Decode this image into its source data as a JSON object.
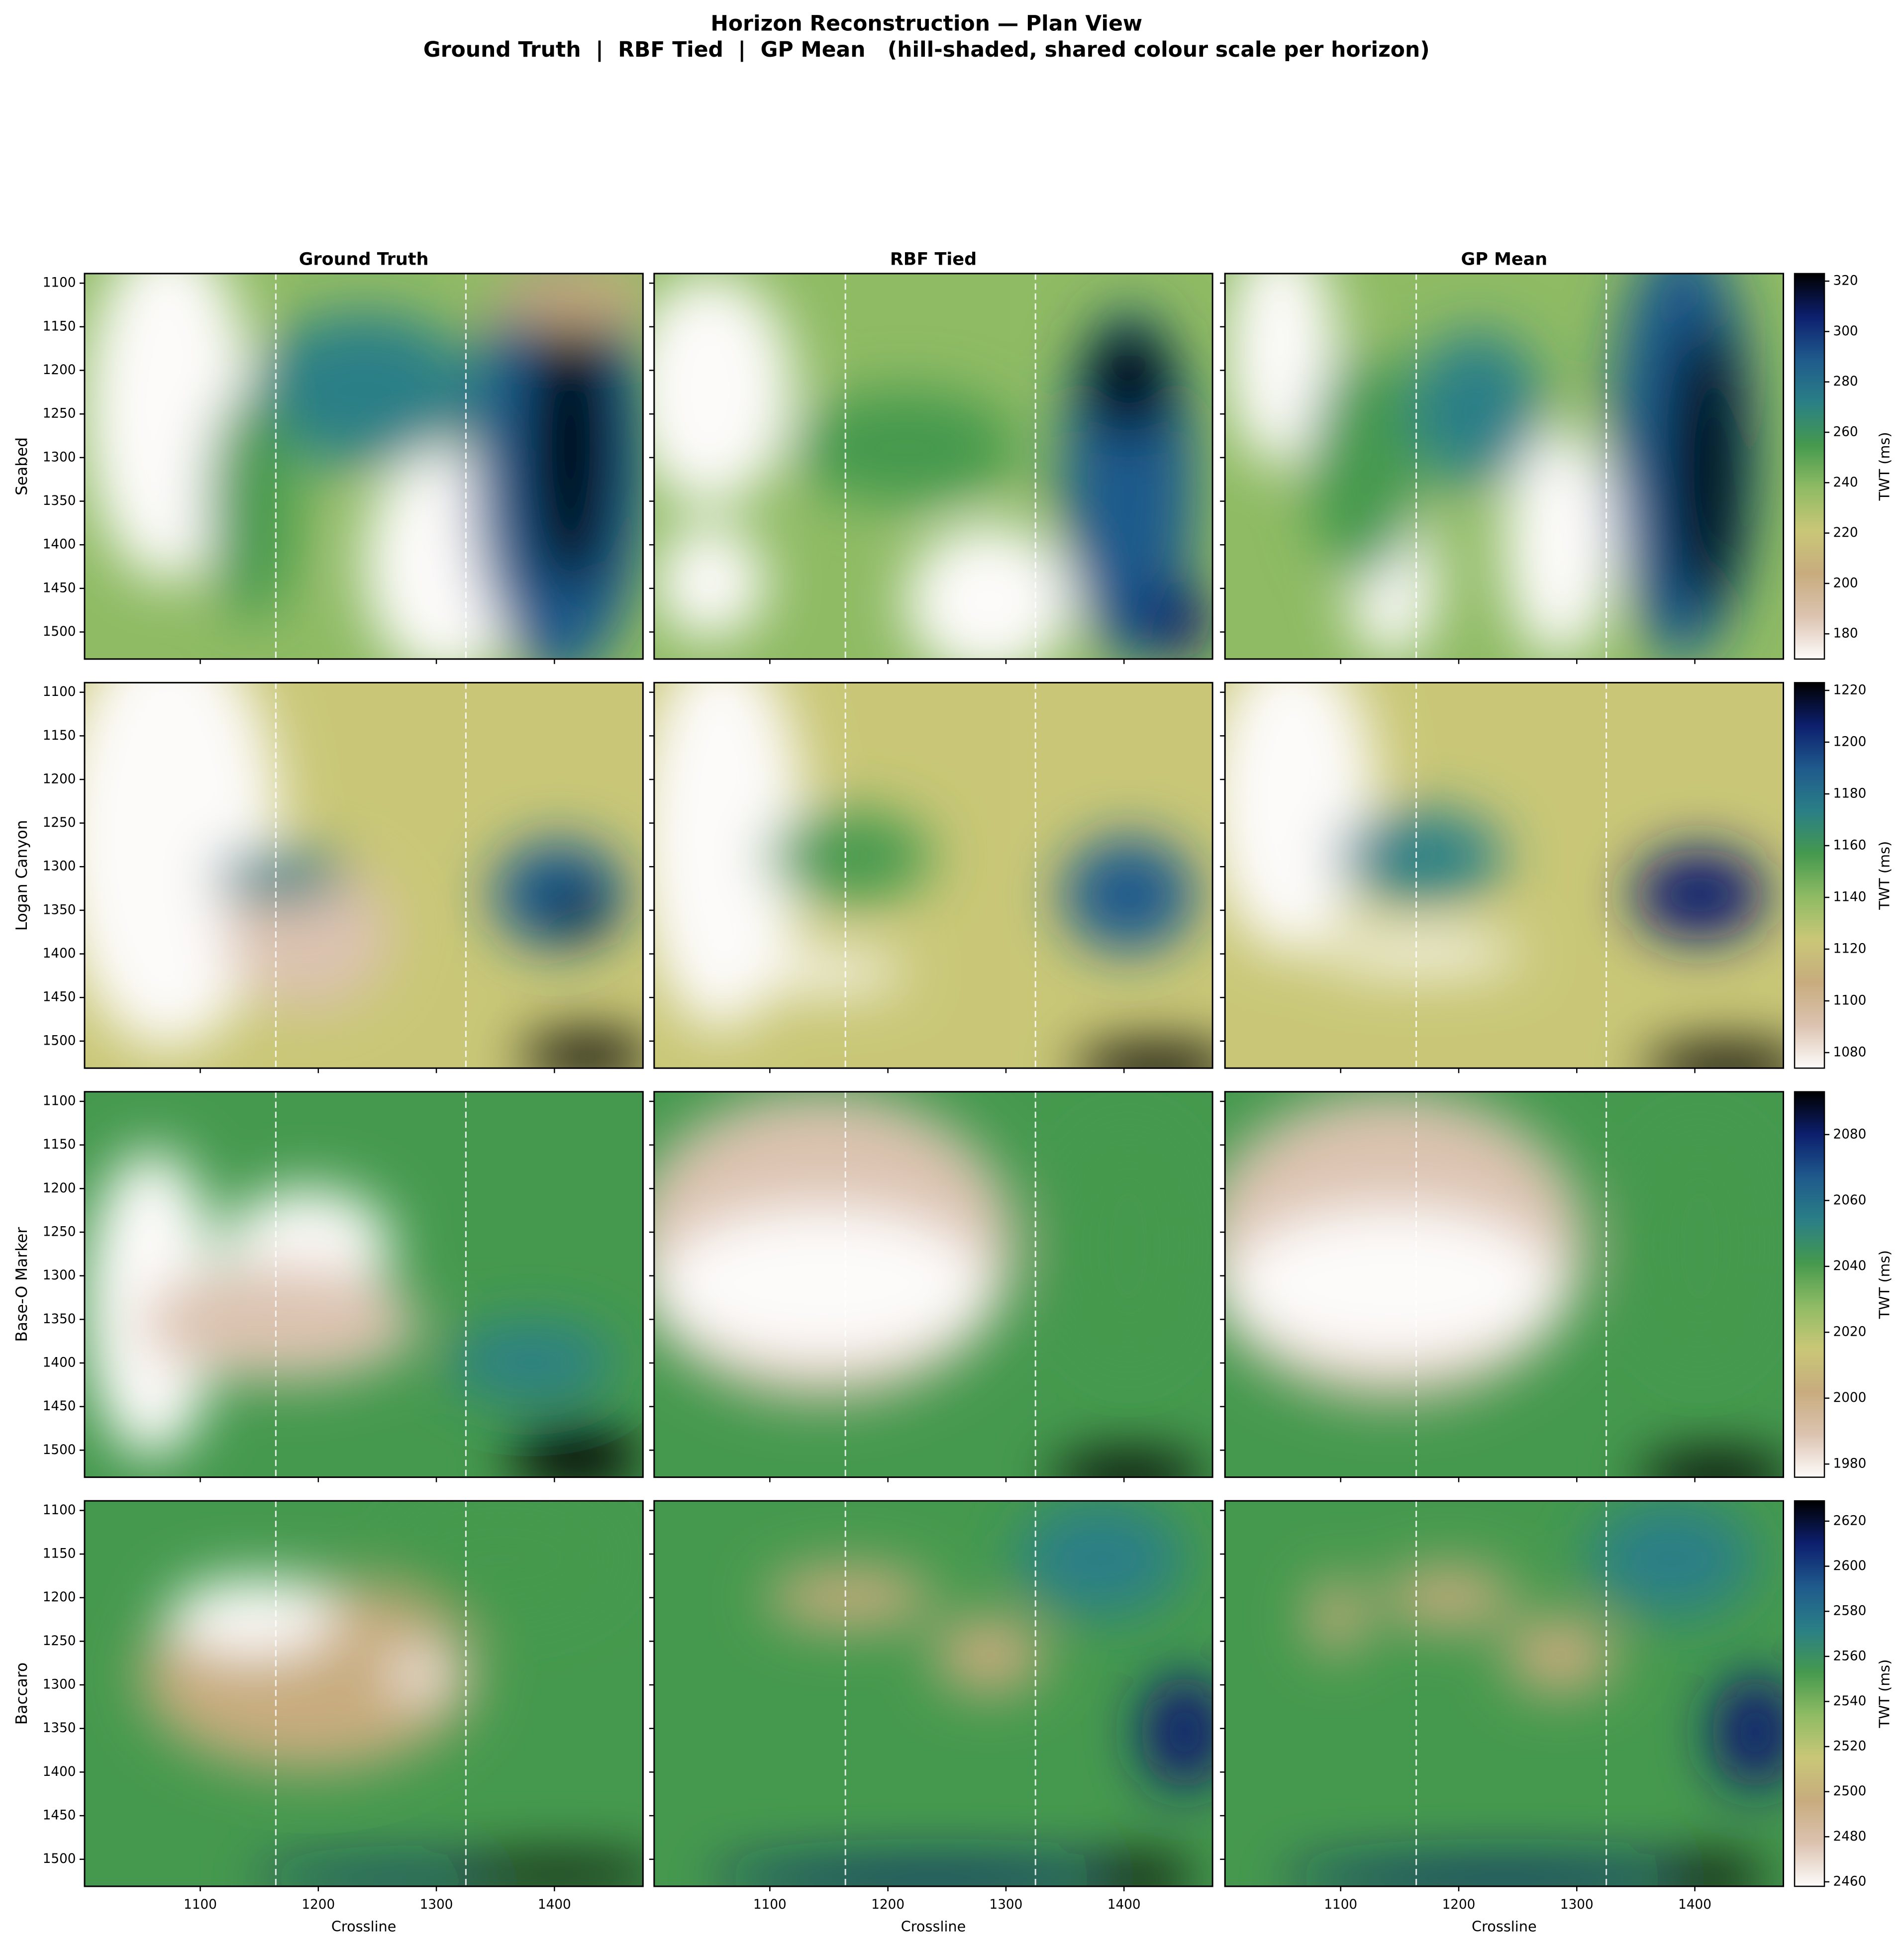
{
  "chart_data": {
    "type": "heatmap",
    "title": "Horizon Reconstruction — Plan View",
    "subtitle": "Ground Truth  |  RBF Tied  |  GP Mean   (hill-shaded, shared colour scale per horizon)",
    "columns": [
      "Ground Truth",
      "RBF Tied",
      "GP Mean"
    ],
    "xlabel": "Crossline",
    "colorbar_label": "TWT (ms)",
    "xlim": [
      1002,
      1475
    ],
    "ylim": [
      1089,
      1531
    ],
    "y_inverted": true,
    "xticks": [
      1100,
      1200,
      1300,
      1400
    ],
    "yticks": [
      1100,
      1150,
      1200,
      1250,
      1300,
      1350,
      1400,
      1450,
      1500
    ],
    "well_crosslines": [
      1164,
      1325
    ],
    "colormap": [
      "#fdfbfa",
      "#dcc3b0",
      "#c8ac7e",
      "#c9c777",
      "#8fbb64",
      "#45994e",
      "#2a7f86",
      "#1f5a8c",
      "#0d1f6e",
      "#000000"
    ],
    "rows": [
      {
        "name": "Seabed",
        "clim": [
          170,
          323
        ],
        "cticks": [
          180,
          200,
          220,
          240,
          260,
          280,
          300,
          320
        ]
      },
      {
        "name": "Logan Canyon",
        "clim": [
          1074,
          1223
        ],
        "cticks": [
          1080,
          1100,
          1120,
          1140,
          1160,
          1180,
          1200,
          1220
        ]
      },
      {
        "name": "Base-O Marker",
        "clim": [
          1976,
          2093
        ],
        "cticks": [
          1980,
          2000,
          2020,
          2040,
          2060,
          2080
        ]
      },
      {
        "name": "Baccaro",
        "clim": [
          2458,
          2629
        ],
        "cticks": [
          2460,
          2480,
          2500,
          2520,
          2540,
          2560,
          2580,
          2600,
          2620
        ]
      }
    ]
  }
}
